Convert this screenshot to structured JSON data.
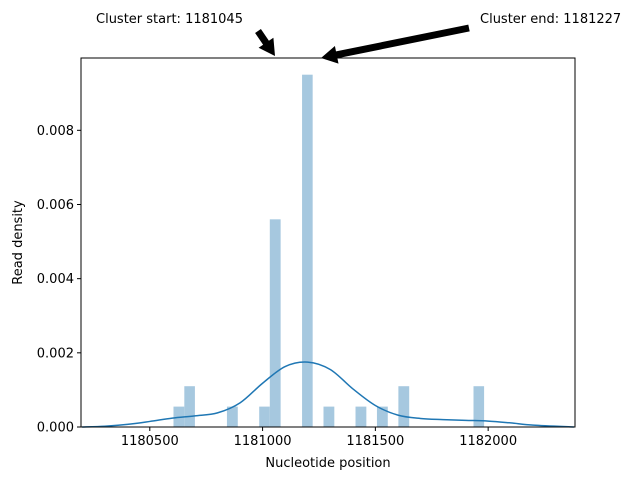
{
  "chart_data": {
    "type": "histogram",
    "xlabel": "Nucleotide position",
    "ylabel": "Read density",
    "xlim": [
      1180195,
      1182385
    ],
    "ylim": [
      0,
      0.00995
    ],
    "x_ticks": [
      1180500,
      1181000,
      1181500,
      1182000
    ],
    "y_ticks": [
      0.0,
      0.002,
      0.004,
      0.006,
      0.008
    ],
    "x_tick_labels": [
      "1180500",
      "1181000",
      "1181500",
      "1182000"
    ],
    "y_tick_labels": [
      "0.000",
      "0.002",
      "0.004",
      "0.006",
      "0.008"
    ],
    "grid": false,
    "bar_color": "#a6c8df",
    "kde_color": "#1f77b4",
    "histogram_bins": [
      {
        "x0": 1180605,
        "x1": 1180653,
        "density": 0.00055
      },
      {
        "x0": 1180653,
        "x1": 1180700,
        "density": 0.0011
      },
      {
        "x0": 1180842,
        "x1": 1180890,
        "density": 0.00055
      },
      {
        "x0": 1180985,
        "x1": 1181032,
        "density": 0.00055
      },
      {
        "x0": 1181032,
        "x1": 1181080,
        "density": 0.0056
      },
      {
        "x0": 1181175,
        "x1": 1181222,
        "density": 0.0095
      },
      {
        "x0": 1181270,
        "x1": 1181318,
        "density": 0.00055
      },
      {
        "x0": 1181412,
        "x1": 1181460,
        "density": 0.00055
      },
      {
        "x0": 1181507,
        "x1": 1181555,
        "density": 0.00055
      },
      {
        "x0": 1181602,
        "x1": 1181650,
        "density": 0.0011
      },
      {
        "x0": 1181935,
        "x1": 1181982,
        "density": 0.0011
      }
    ],
    "kde_curve": {
      "x": [
        1180200,
        1180300,
        1180400,
        1180500,
        1180600,
        1180700,
        1180800,
        1180900,
        1181000,
        1181100,
        1181200,
        1181300,
        1181400,
        1181500,
        1181600,
        1181700,
        1181800,
        1181900,
        1182000,
        1182100,
        1182200,
        1182380
      ],
      "y": [
        0.0,
        2e-05,
        7e-05,
        0.00015,
        0.00024,
        0.0003,
        0.00038,
        0.00065,
        0.00118,
        0.00163,
        0.00175,
        0.00155,
        0.00103,
        0.00058,
        0.00032,
        0.00023,
        0.0002,
        0.00018,
        0.00016,
        0.00011,
        5e-05,
        0.0
      ]
    },
    "annotations": [
      {
        "text": "Cluster start: 1181045",
        "target_x": 1181045
      },
      {
        "text": "Cluster end: 1181227",
        "target_x": 1181227
      }
    ]
  }
}
